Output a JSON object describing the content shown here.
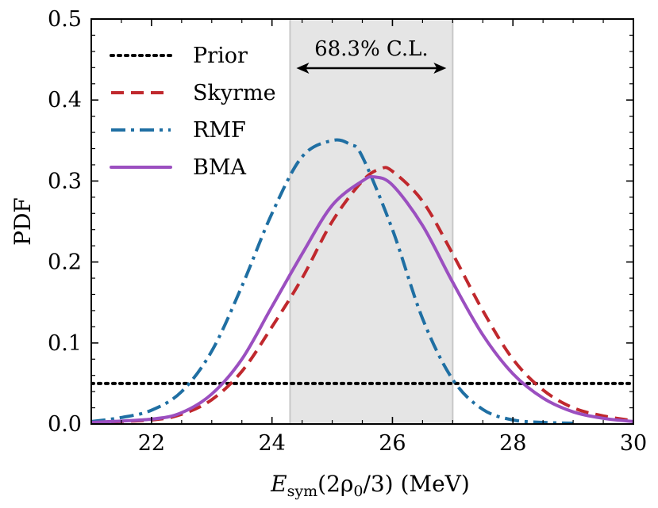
{
  "chart_data": {
    "type": "line",
    "title": "",
    "xlabel": "E_sym(2ρ0/3) (MeV)",
    "xlabel_parts": {
      "main": "E",
      "sub": "sym",
      "rest": "(2ρ",
      "sub2": "0",
      "rest2": "/3) (MeV)"
    },
    "ylabel": "PDF",
    "xlim": [
      21,
      30
    ],
    "ylim": [
      0,
      0.5
    ],
    "xticks": [
      22,
      24,
      26,
      28,
      30
    ],
    "yticks": [
      0.0,
      0.1,
      0.2,
      0.3,
      0.4,
      0.5
    ],
    "xtick_labels": [
      "22",
      "24",
      "26",
      "28",
      "30"
    ],
    "ytick_labels": [
      "0.0",
      "0.1",
      "0.2",
      "0.3",
      "0.4",
      "0.5"
    ],
    "legend_position": "top-left",
    "shaded_band": {
      "x_min": 24.3,
      "x_max": 27.0,
      "label": "68.3% C.L.",
      "color": "#e5e5e5",
      "edge_color": "#c8c8c8"
    },
    "series": [
      {
        "name": "Prior",
        "style": "dotted",
        "color": "#000000",
        "x": [
          21,
          30
        ],
        "y": [
          0.05,
          0.05
        ]
      },
      {
        "name": "Skyrme",
        "style": "dashed",
        "color": "#c0282d",
        "x": [
          21,
          22,
          22.5,
          23,
          23.5,
          24,
          24.5,
          25,
          25.5,
          25.8,
          26,
          26.5,
          27,
          27.5,
          28,
          28.5,
          29,
          29.5,
          30
        ],
        "y": [
          0.002,
          0.005,
          0.012,
          0.03,
          0.065,
          0.12,
          0.18,
          0.25,
          0.3,
          0.315,
          0.312,
          0.275,
          0.21,
          0.14,
          0.08,
          0.042,
          0.02,
          0.01,
          0.004
        ]
      },
      {
        "name": "RMF",
        "style": "dashdot",
        "color": "#1f6fa3",
        "x": [
          21,
          21.5,
          22,
          22.5,
          23,
          23.5,
          24,
          24.5,
          25,
          25.3,
          25.5,
          26,
          26.5,
          27,
          27.5,
          28,
          28.5,
          29
        ],
        "y": [
          0.003,
          0.008,
          0.017,
          0.04,
          0.09,
          0.17,
          0.26,
          0.33,
          0.35,
          0.345,
          0.33,
          0.24,
          0.13,
          0.055,
          0.018,
          0.005,
          0.002,
          0.001
        ]
      },
      {
        "name": "BMA",
        "style": "solid",
        "color": "#9b4fc0",
        "x": [
          21,
          22,
          22.5,
          23,
          23.5,
          24,
          24.5,
          25,
          25.5,
          25.7,
          26,
          26.5,
          27,
          27.5,
          28,
          28.5,
          29,
          29.5,
          30
        ],
        "y": [
          0.002,
          0.006,
          0.014,
          0.037,
          0.08,
          0.145,
          0.21,
          0.27,
          0.3,
          0.305,
          0.295,
          0.245,
          0.175,
          0.11,
          0.062,
          0.032,
          0.015,
          0.007,
          0.003
        ]
      }
    ]
  }
}
